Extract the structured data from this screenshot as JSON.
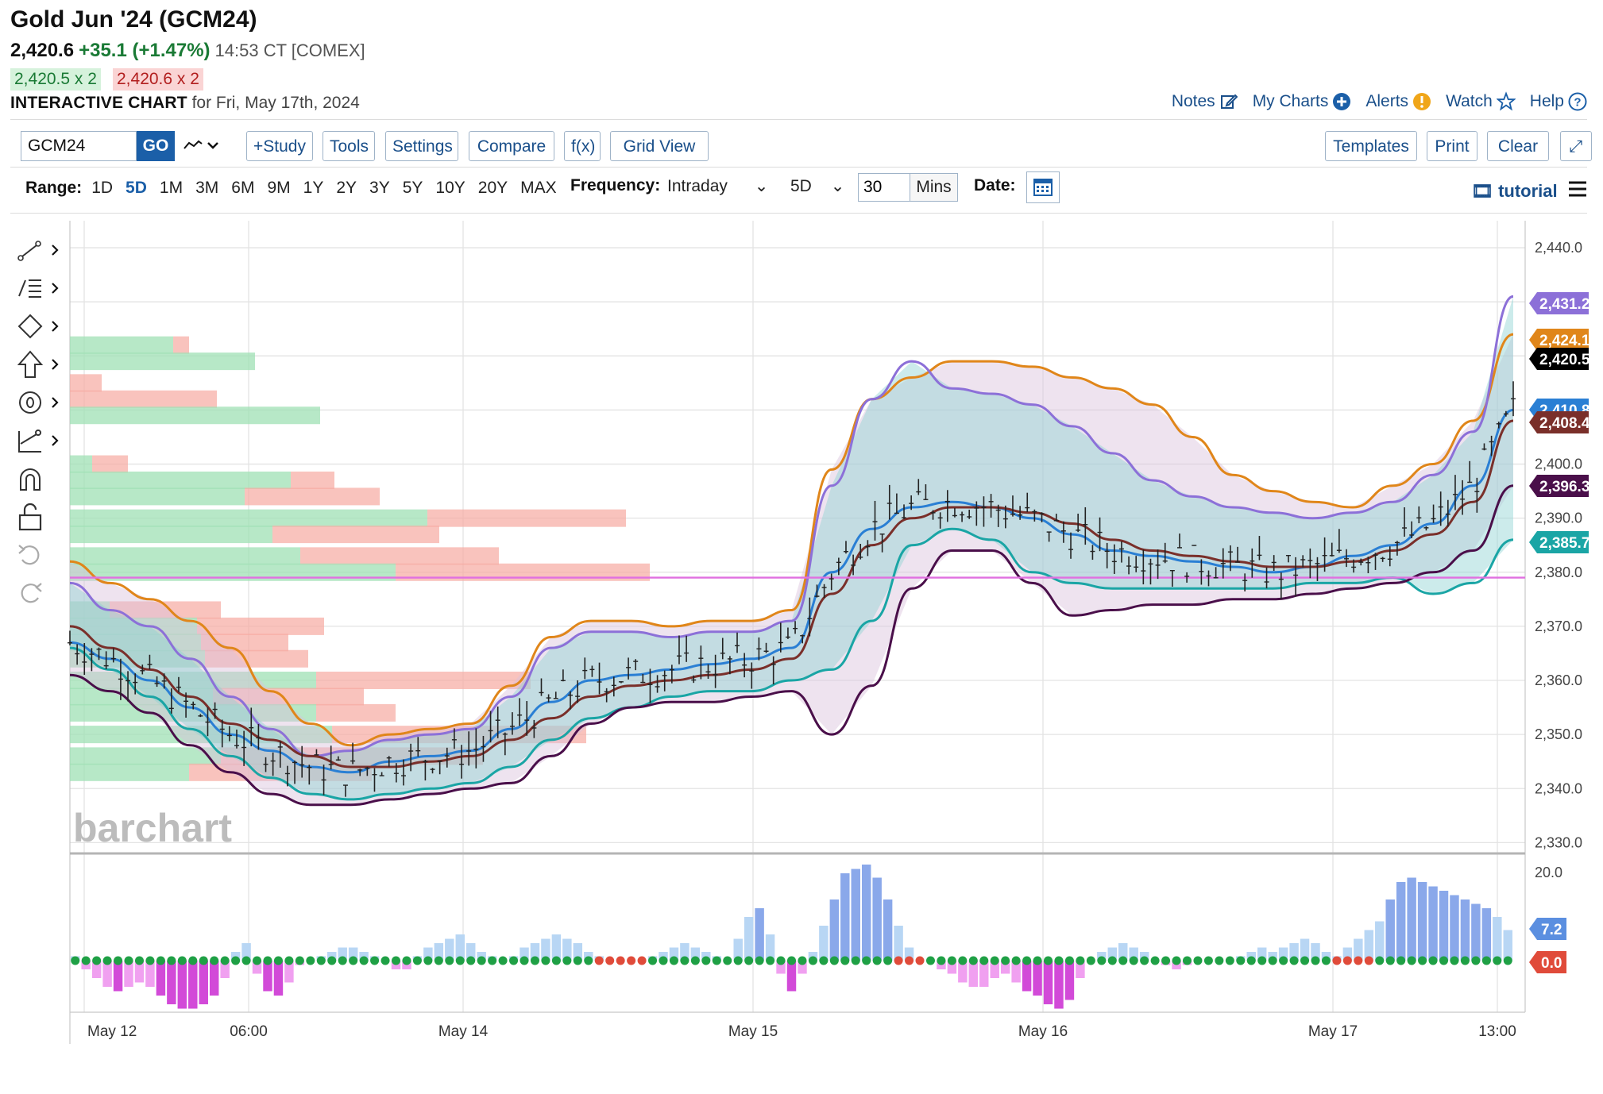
{
  "header": {
    "title": "Gold Jun '24 (GCM24)",
    "last": "2,420.6",
    "change": "+35.1 (+1.47%)",
    "time": "14:53 CT [COMEX]",
    "bid": "2,420.5 x 2",
    "ask": "2,420.6 x 2",
    "chart_title": "INTERACTIVE CHART",
    "chart_for": "for Fri, May 17th, 2024"
  },
  "toplinks": [
    {
      "label": "Notes",
      "icon": "edit-icon"
    },
    {
      "label": "My Charts",
      "icon": "plus-circle-icon"
    },
    {
      "label": "Alerts",
      "icon": "exclamation-circle-icon"
    },
    {
      "label": "Watch",
      "icon": "star-icon"
    },
    {
      "label": "Help",
      "icon": "question-circle-icon"
    }
  ],
  "toolbar": {
    "symbol": "GCM24",
    "go": "GO",
    "study": "+Study",
    "tools": "Tools",
    "settings": "Settings",
    "compare": "Compare",
    "fx": "f(x)",
    "grid_view": "Grid View",
    "templates": "Templates",
    "print": "Print",
    "clear": "Clear",
    "expand": "⤢"
  },
  "rangebar": {
    "label": "Range:",
    "ranges": [
      "1D",
      "5D",
      "1M",
      "3M",
      "6M",
      "9M",
      "1Y",
      "2Y",
      "3Y",
      "5Y",
      "10Y",
      "20Y",
      "MAX"
    ],
    "active": "5D",
    "frequency_label": "Frequency:",
    "frequency": "Intraday",
    "period": "5D",
    "mins_value": "30",
    "mins_label": "Mins",
    "date_label": "Date:",
    "tutorial": "tutorial"
  },
  "chart_data": {
    "type": "line",
    "title": "Gold Jun '24 (GCM24)",
    "price_ticks": [
      "2,440.0",
      "2,400.0",
      "2,390.0",
      "2,380.0",
      "2,370.0",
      "2,360.0",
      "2,350.0",
      "2,340.0",
      "2,330.0"
    ],
    "ylim": [
      2328,
      2445
    ],
    "x_labels": [
      "May 12",
      "06:00",
      "May 14",
      "May 15",
      "May 16",
      "May 17",
      "13:00"
    ],
    "reference_line": 2379,
    "watermark": "barchart",
    "series": [
      {
        "name": "upper band",
        "color": "#e0861a",
        "values": [
          2382,
          2378,
          2375,
          2371,
          2366,
          2358,
          2352,
          2348,
          2350,
          2351,
          2352,
          2359,
          2368,
          2371,
          2371,
          2370,
          2371,
          2371,
          2373,
          2399,
          2412,
          2416,
          2419,
          2419,
          2418,
          2416,
          2414,
          2411,
          2405,
          2398,
          2395,
          2393,
          2392,
          2396,
          2400,
          2408,
          2424
        ]
      },
      {
        "name": "upper band 2",
        "color": "#8c70d8",
        "values": [
          2378,
          2373,
          2370,
          2364,
          2357,
          2351,
          2346,
          2347,
          2349,
          2350,
          2351,
          2357,
          2366,
          2369,
          2369,
          2368,
          2369,
          2369,
          2371,
          2396,
          2412,
          2419,
          2414,
          2413,
          2411,
          2407,
          2402,
          2397,
          2394,
          2392,
          2391,
          2390,
          2391,
          2393,
          2398,
          2406,
          2431
        ]
      },
      {
        "name": "ema 1",
        "color": "#2a7fd4",
        "values": [
          2367,
          2364,
          2360,
          2355,
          2350,
          2347,
          2344,
          2343,
          2345,
          2346,
          2347,
          2351,
          2356,
          2360,
          2361,
          2362,
          2363,
          2364,
          2366,
          2380,
          2388,
          2392,
          2393,
          2392,
          2390,
          2387,
          2384,
          2383,
          2382,
          2381,
          2380,
          2381,
          2383,
          2385,
          2389,
          2396,
          2410
        ]
      },
      {
        "name": "ema 2",
        "color": "#7a2f2a",
        "values": [
          2370,
          2366,
          2362,
          2357,
          2352,
          2349,
          2346,
          2344,
          2344,
          2345,
          2346,
          2349,
          2353,
          2357,
          2359,
          2360,
          2361,
          2362,
          2364,
          2376,
          2385,
          2390,
          2392,
          2392,
          2391,
          2389,
          2386,
          2384,
          2383,
          2382,
          2381,
          2381,
          2382,
          2384,
          2387,
          2393,
          2408
        ]
      },
      {
        "name": "lower band",
        "color": "#1aa5a5",
        "values": [
          2366,
          2362,
          2357,
          2351,
          2346,
          2342,
          2339,
          2338,
          2339,
          2340,
          2341,
          2344,
          2349,
          2353,
          2355,
          2357,
          2358,
          2358,
          2360,
          2362,
          2371,
          2385,
          2388,
          2386,
          2380,
          2378,
          2377,
          2377,
          2377,
          2377,
          2377,
          2378,
          2378,
          2379,
          2376,
          2378,
          2386
        ]
      },
      {
        "name": "lower band 2",
        "color": "#4a0f4a",
        "values": [
          2361,
          2358,
          2354,
          2348,
          2343,
          2339,
          2337,
          2337,
          2338,
          2339,
          2340,
          2341,
          2346,
          2352,
          2355,
          2356,
          2356,
          2357,
          2358,
          2350,
          2359,
          2377,
          2384,
          2384,
          2378,
          2372,
          2373,
          2374,
          2374,
          2375,
          2375,
          2376,
          2377,
          2378,
          2380,
          2384,
          2396
        ]
      }
    ],
    "price_tags": [
      {
        "value": "2,431.2",
        "price": 2431.2,
        "color": "#8c70d8"
      },
      {
        "value": "2,424.1",
        "price": 2424.1,
        "color": "#e0861a"
      },
      {
        "value": "2,420.5",
        "price": 2420.5,
        "color": "#000000"
      },
      {
        "value": "2,410.8",
        "price": 2410.8,
        "color": "#2a7fd4"
      },
      {
        "value": "2,408.4",
        "price": 2408.4,
        "color": "#7a2f2a"
      },
      {
        "value": "2,396.3",
        "price": 2396.3,
        "color": "#4a0f4a"
      },
      {
        "value": "2,385.7",
        "price": 2385.7,
        "color": "#1aa5a5"
      }
    ],
    "volume_profile": [
      {
        "price": 2422,
        "buy": 130,
        "sell": 20
      },
      {
        "price": 2419,
        "buy": 233,
        "sell": 0
      },
      {
        "price": 2415,
        "buy": 0,
        "sell": 40
      },
      {
        "price": 2412,
        "buy": 0,
        "sell": 185
      },
      {
        "price": 2409,
        "buy": 315,
        "sell": 0
      },
      {
        "price": 2400,
        "buy": 28,
        "sell": 45
      },
      {
        "price": 2397,
        "buy": 278,
        "sell": 55
      },
      {
        "price": 2394,
        "buy": 220,
        "sell": 170
      },
      {
        "price": 2390,
        "buy": 450,
        "sell": 250
      },
      {
        "price": 2387,
        "buy": 255,
        "sell": 210
      },
      {
        "price": 2383,
        "buy": 290,
        "sell": 250
      },
      {
        "price": 2380,
        "buy": 410,
        "sell": 320
      },
      {
        "price": 2373,
        "buy": 50,
        "sell": 140
      },
      {
        "price": 2370,
        "buy": 160,
        "sell": 160
      },
      {
        "price": 2367,
        "buy": 165,
        "sell": 110
      },
      {
        "price": 2364,
        "buy": 170,
        "sell": 130
      },
      {
        "price": 2360,
        "buy": 310,
        "sell": 270
      },
      {
        "price": 2357,
        "buy": 180,
        "sell": 190
      },
      {
        "price": 2354,
        "buy": 310,
        "sell": 100
      },
      {
        "price": 2350,
        "buy": 330,
        "sell": 320
      },
      {
        "price": 2346,
        "buy": 190,
        "sell": 330
      },
      {
        "price": 2343,
        "buy": 150,
        "sell": 230
      }
    ],
    "oscillator": {
      "ticks": [
        "20.0"
      ],
      "tags": [
        {
          "value": "7.2",
          "color": "#5b8fe0"
        },
        {
          "value": "0.0",
          "color": "#e04b3a"
        }
      ],
      "values": [
        1,
        -2,
        -4,
        -6,
        -7,
        -6,
        -5,
        -6,
        -8,
        -10,
        -11,
        -11,
        -10,
        -8,
        -4,
        2,
        4,
        -3,
        -7,
        -8,
        -5,
        -1,
        0,
        1,
        2,
        3,
        3,
        2,
        1,
        0,
        -2,
        -2,
        1,
        3,
        4,
        5,
        6,
        4,
        2,
        1,
        0,
        1,
        3,
        4,
        5,
        6,
        5,
        4,
        2,
        1,
        0,
        0,
        0,
        0,
        1,
        2,
        3,
        4,
        3,
        2,
        1,
        0,
        5,
        10,
        12,
        6,
        -3,
        -7,
        -3,
        2,
        8,
        14,
        20,
        21,
        22,
        19,
        14,
        8,
        3,
        0,
        0,
        -2,
        -3,
        -5,
        -6,
        -6,
        -4,
        -3,
        -5,
        -7,
        -8,
        -10,
        -11,
        -9,
        -4,
        0,
        2,
        3,
        4,
        3,
        2,
        0,
        -1,
        -2,
        -1,
        0,
        0,
        0,
        0,
        1,
        2,
        3,
        2,
        3,
        4,
        5,
        4,
        2,
        1,
        3,
        5,
        7,
        9,
        14,
        18,
        19,
        18,
        17,
        16,
        15,
        14,
        13,
        12,
        10,
        7
      ]
    }
  }
}
